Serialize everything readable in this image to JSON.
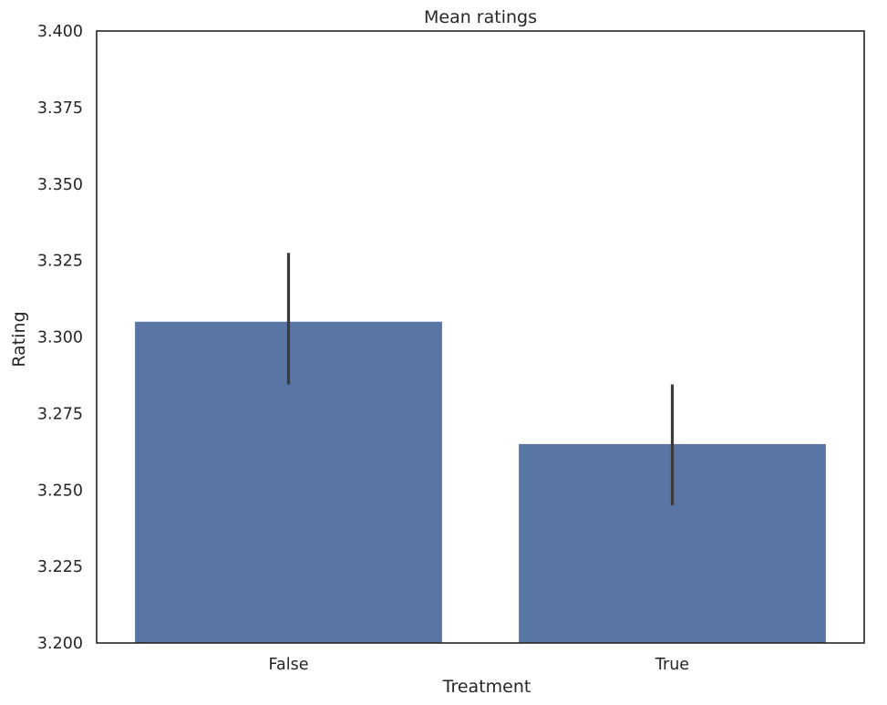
{
  "chart_data": {
    "type": "bar",
    "title": "Mean ratings",
    "xlabel": "Treatment",
    "ylabel": "Rating",
    "categories": [
      "False",
      "True"
    ],
    "values": [
      3.305,
      3.265
    ],
    "error_bars": [
      {
        "low": 3.2845,
        "high": 3.3275
      },
      {
        "low": 3.245,
        "high": 3.2845
      }
    ],
    "ylim": [
      3.2,
      3.4
    ],
    "yticks": [
      "3.200",
      "3.225",
      "3.250",
      "3.275",
      "3.300",
      "3.325",
      "3.350",
      "3.375",
      "3.400"
    ],
    "grid": false,
    "legend": "none",
    "colors": {
      "bar": "#5975a4",
      "error_bar": "#3a3a3a",
      "axes": "#262626",
      "background": "#ffffff"
    }
  }
}
